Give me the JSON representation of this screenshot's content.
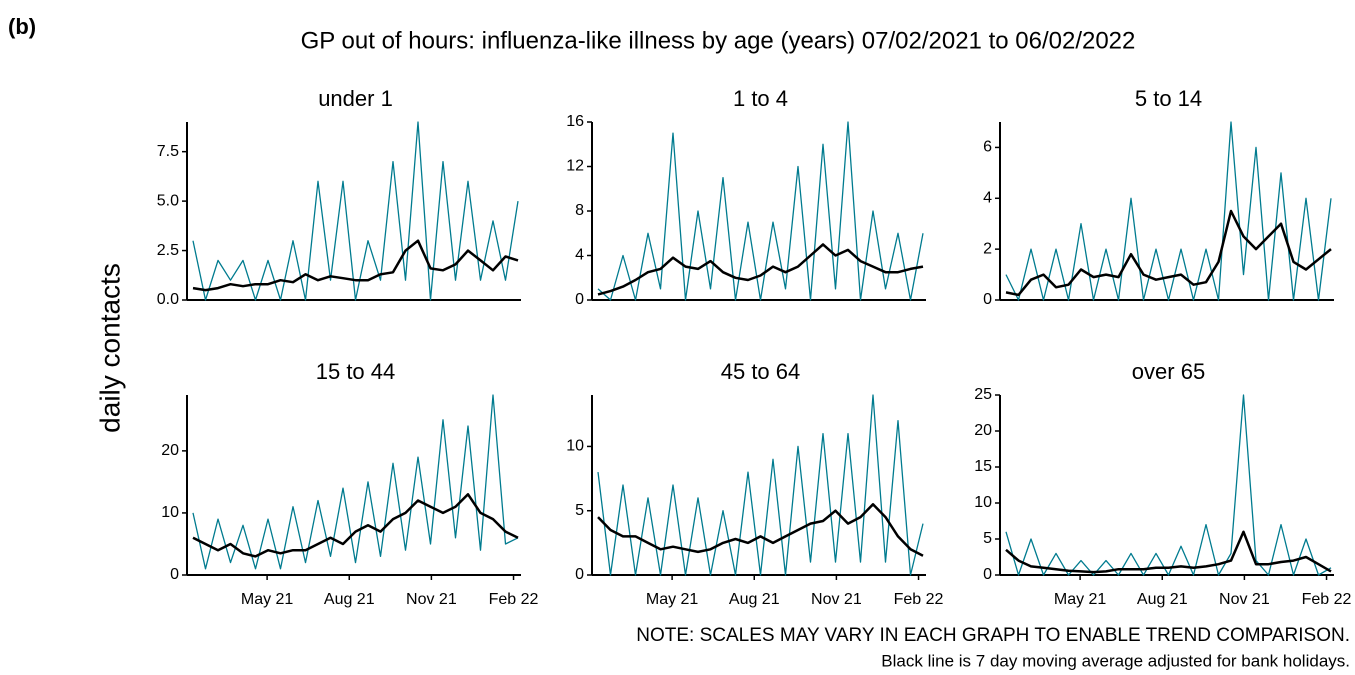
{
  "panel_label": "(b)",
  "title": "GP out of hours: influenza-like illness by age (years) 07/02/2021 to 06/02/2022",
  "y_label": "daily contacts",
  "notes": [
    "NOTE: SCALES MAY VARY IN EACH GRAPH TO ENABLE TREND COMPARISON.",
    "Black line is 7 day moving average adjusted for bank holidays."
  ],
  "chart_data": [
    {
      "type": "line",
      "title": "under 1",
      "x": [
        "2021-02-07",
        "2021-02-21",
        "2021-03-07",
        "2021-03-21",
        "2021-04-04",
        "2021-04-18",
        "2021-05-02",
        "2021-05-16",
        "2021-05-30",
        "2021-06-13",
        "2021-06-27",
        "2021-07-11",
        "2021-07-25",
        "2021-08-08",
        "2021-08-22",
        "2021-09-05",
        "2021-09-19",
        "2021-10-03",
        "2021-10-17",
        "2021-10-31",
        "2021-11-14",
        "2021-11-28",
        "2021-12-12",
        "2021-12-26",
        "2022-01-09",
        "2022-01-23",
        "2022-02-06"
      ],
      "xlim": [
        "2021-02-07",
        "2022-02-06"
      ],
      "series": [
        {
          "color": "#007b8f",
          "values": [
            3,
            0,
            2,
            1,
            2,
            0,
            2,
            0,
            3,
            0,
            6,
            1,
            6,
            0,
            3,
            1,
            7,
            1,
            9,
            0,
            7,
            1,
            6,
            1,
            4,
            1,
            5
          ]
        },
        {
          "color": "#000000",
          "values": [
            0.6,
            0.5,
            0.6,
            0.8,
            0.7,
            0.8,
            0.8,
            1.0,
            0.9,
            1.3,
            1.0,
            1.2,
            1.1,
            1.0,
            1.0,
            1.3,
            1.4,
            2.5,
            3.0,
            1.6,
            1.5,
            1.8,
            2.5,
            2.0,
            1.5,
            2.2,
            2.0
          ]
        }
      ],
      "ylim": [
        0,
        9
      ],
      "yticks": [
        {
          "value": 0,
          "label": "0.0"
        },
        2.5,
        {
          "value": 5,
          "label": "5.0"
        },
        7.5
      ]
    },
    {
      "type": "line",
      "title": "1 to 4",
      "x": [
        "2021-02-07",
        "2021-02-21",
        "2021-03-07",
        "2021-03-21",
        "2021-04-04",
        "2021-04-18",
        "2021-05-02",
        "2021-05-16",
        "2021-05-30",
        "2021-06-13",
        "2021-06-27",
        "2021-07-11",
        "2021-07-25",
        "2021-08-08",
        "2021-08-22",
        "2021-09-05",
        "2021-09-19",
        "2021-10-03",
        "2021-10-17",
        "2021-10-31",
        "2021-11-14",
        "2021-11-28",
        "2021-12-12",
        "2021-12-26",
        "2022-01-09",
        "2022-01-23",
        "2022-02-06"
      ],
      "xlim": [
        "2021-02-07",
        "2022-02-06"
      ],
      "series": [
        {
          "color": "#007b8f",
          "values": [
            1,
            0,
            4,
            0,
            6,
            1,
            15,
            0,
            8,
            1,
            11,
            0,
            7,
            0,
            7,
            1,
            12,
            0,
            14,
            1,
            16,
            0,
            8,
            1,
            6,
            0,
            6
          ]
        },
        {
          "color": "#000000",
          "values": [
            0.5,
            0.8,
            1.2,
            1.8,
            2.5,
            2.8,
            3.8,
            3.0,
            2.8,
            3.5,
            2.5,
            2.0,
            1.8,
            2.2,
            3.0,
            2.5,
            3.0,
            4.0,
            5.0,
            4.0,
            4.5,
            3.5,
            3.0,
            2.5,
            2.5,
            2.8,
            3.0
          ]
        }
      ],
      "ylim": [
        0,
        16
      ],
      "yticks": [
        0,
        4,
        8,
        12,
        16
      ]
    },
    {
      "type": "line",
      "title": "5 to 14",
      "x": [
        "2021-02-07",
        "2021-02-21",
        "2021-03-07",
        "2021-03-21",
        "2021-04-04",
        "2021-04-18",
        "2021-05-02",
        "2021-05-16",
        "2021-05-30",
        "2021-06-13",
        "2021-06-27",
        "2021-07-11",
        "2021-07-25",
        "2021-08-08",
        "2021-08-22",
        "2021-09-05",
        "2021-09-19",
        "2021-10-03",
        "2021-10-17",
        "2021-10-31",
        "2021-11-14",
        "2021-11-28",
        "2021-12-12",
        "2021-12-26",
        "2022-01-09",
        "2022-01-23",
        "2022-02-06"
      ],
      "xlim": [
        "2021-02-07",
        "2022-02-06"
      ],
      "series": [
        {
          "color": "#007b8f",
          "values": [
            1,
            0,
            2,
            0,
            2,
            0,
            3,
            0,
            2,
            0,
            4,
            0,
            2,
            0,
            2,
            0,
            2,
            0,
            7,
            1,
            6,
            0,
            5,
            0,
            4,
            0,
            4
          ]
        },
        {
          "color": "#000000",
          "values": [
            0.3,
            0.2,
            0.8,
            1.0,
            0.5,
            0.6,
            1.2,
            0.9,
            1.0,
            0.9,
            1.8,
            1.0,
            0.8,
            0.9,
            1.0,
            0.6,
            0.7,
            1.5,
            3.5,
            2.5,
            2.0,
            2.5,
            3.0,
            1.5,
            1.2,
            1.6,
            2.0
          ]
        }
      ],
      "ylim": [
        0,
        7
      ],
      "yticks": [
        0,
        2,
        4,
        6
      ]
    },
    {
      "type": "line",
      "title": "15 to 44",
      "x": [
        "2021-02-07",
        "2021-02-21",
        "2021-03-07",
        "2021-03-21",
        "2021-04-04",
        "2021-04-18",
        "2021-05-02",
        "2021-05-16",
        "2021-05-30",
        "2021-06-13",
        "2021-06-27",
        "2021-07-11",
        "2021-07-25",
        "2021-08-08",
        "2021-08-22",
        "2021-09-05",
        "2021-09-19",
        "2021-10-03",
        "2021-10-17",
        "2021-10-31",
        "2021-11-14",
        "2021-11-28",
        "2021-12-12",
        "2021-12-26",
        "2022-01-09",
        "2022-01-23",
        "2022-02-06"
      ],
      "xlim": [
        "2021-02-07",
        "2022-02-06"
      ],
      "xticks": [
        {
          "value": "2021-05-01",
          "label": "May 21"
        },
        {
          "value": "2021-08-01",
          "label": "Aug 21"
        },
        {
          "value": "2021-11-01",
          "label": "Nov 21"
        },
        {
          "value": "2022-02-01",
          "label": "Feb 22"
        }
      ],
      "series": [
        {
          "color": "#007b8f",
          "values": [
            10,
            1,
            9,
            2,
            8,
            1,
            9,
            1,
            11,
            2,
            12,
            3,
            14,
            2,
            15,
            3,
            18,
            4,
            19,
            5,
            25,
            6,
            24,
            4,
            29,
            5,
            6
          ]
        },
        {
          "color": "#000000",
          "values": [
            6,
            5,
            4,
            5,
            3.5,
            3,
            4,
            3.5,
            4,
            4,
            5,
            6,
            5,
            7,
            8,
            7,
            9,
            10,
            12,
            11,
            10,
            11,
            13,
            10,
            9,
            7,
            6
          ]
        }
      ],
      "ylim": [
        0,
        29
      ],
      "yticks": [
        0,
        10,
        20
      ]
    },
    {
      "type": "line",
      "title": "45 to 64",
      "x": [
        "2021-02-07",
        "2021-02-21",
        "2021-03-07",
        "2021-03-21",
        "2021-04-04",
        "2021-04-18",
        "2021-05-02",
        "2021-05-16",
        "2021-05-30",
        "2021-06-13",
        "2021-06-27",
        "2021-07-11",
        "2021-07-25",
        "2021-08-08",
        "2021-08-22",
        "2021-09-05",
        "2021-09-19",
        "2021-10-03",
        "2021-10-17",
        "2021-10-31",
        "2021-11-14",
        "2021-11-28",
        "2021-12-12",
        "2021-12-26",
        "2022-01-09",
        "2022-01-23",
        "2022-02-06"
      ],
      "xlim": [
        "2021-02-07",
        "2022-02-06"
      ],
      "xticks": [
        {
          "value": "2021-05-01",
          "label": "May 21"
        },
        {
          "value": "2021-08-01",
          "label": "Aug 21"
        },
        {
          "value": "2021-11-01",
          "label": "Nov 21"
        },
        {
          "value": "2022-02-01",
          "label": "Feb 22"
        }
      ],
      "series": [
        {
          "color": "#007b8f",
          "values": [
            8,
            0,
            7,
            0,
            6,
            0,
            7,
            0,
            6,
            0,
            5,
            0,
            8,
            0,
            9,
            0,
            10,
            1,
            11,
            1,
            11,
            1,
            14,
            1,
            12,
            0,
            4
          ]
        },
        {
          "color": "#000000",
          "values": [
            4.5,
            3.5,
            3,
            3,
            2.5,
            2,
            2.2,
            2,
            1.8,
            2,
            2.5,
            2.8,
            2.5,
            3,
            2.5,
            3,
            3.5,
            4,
            4.2,
            5,
            4,
            4.5,
            5.5,
            4.5,
            3,
            2,
            1.5
          ]
        }
      ],
      "ylim": [
        0,
        14
      ],
      "yticks": [
        0,
        5,
        10
      ]
    },
    {
      "type": "line",
      "title": "over 65",
      "x": [
        "2021-02-07",
        "2021-02-21",
        "2021-03-07",
        "2021-03-21",
        "2021-04-04",
        "2021-04-18",
        "2021-05-02",
        "2021-05-16",
        "2021-05-30",
        "2021-06-13",
        "2021-06-27",
        "2021-07-11",
        "2021-07-25",
        "2021-08-08",
        "2021-08-22",
        "2021-09-05",
        "2021-09-19",
        "2021-10-03",
        "2021-10-17",
        "2021-10-31",
        "2021-11-14",
        "2021-11-28",
        "2021-12-12",
        "2021-12-26",
        "2022-01-09",
        "2022-01-23",
        "2022-02-06"
      ],
      "xlim": [
        "2021-02-07",
        "2022-02-06"
      ],
      "xticks": [
        {
          "value": "2021-05-01",
          "label": "May 21"
        },
        {
          "value": "2021-08-01",
          "label": "Aug 21"
        },
        {
          "value": "2021-11-01",
          "label": "Nov 21"
        },
        {
          "value": "2022-02-01",
          "label": "Feb 22"
        }
      ],
      "series": [
        {
          "color": "#007b8f",
          "values": [
            6,
            0,
            5,
            0,
            3,
            0,
            2,
            0,
            2,
            0,
            3,
            0,
            3,
            0,
            4,
            0,
            7,
            0,
            3,
            25,
            2,
            0,
            7,
            0,
            5,
            0,
            1
          ]
        },
        {
          "color": "#000000",
          "values": [
            3.5,
            2,
            1.2,
            1,
            0.8,
            0.6,
            0.5,
            0.4,
            0.5,
            0.8,
            0.8,
            0.8,
            1,
            1,
            1.2,
            1,
            1.2,
            1.5,
            2,
            6,
            1.5,
            1.5,
            1.8,
            2,
            2.5,
            1.5,
            0.5
          ]
        }
      ],
      "ylim": [
        0,
        25
      ],
      "yticks": [
        0,
        5,
        10,
        15,
        20,
        25
      ]
    }
  ]
}
